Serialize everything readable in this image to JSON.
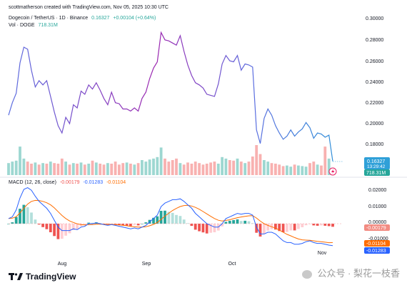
{
  "header": {
    "attribution": "scottmatherson created with TradingView.com, Nov 05, 2025 10:30 UTC",
    "symbol": "Dogecoin / TetherUS · 1D · Binance",
    "price": "0.16327",
    "change": "+0.00104 (+0.64%)",
    "vol_label": "Vol · DOGE",
    "vol_value": "718.31M"
  },
  "price_axis": {
    "ticks": [
      "0.30000",
      "0.28000",
      "0.26000",
      "0.24000",
      "0.22000",
      "0.20000",
      "0.18000"
    ],
    "current_price": "0.16327",
    "countdown": "13:29:42",
    "current_volume": "718.31M"
  },
  "macd": {
    "title": "MACD (12, 26, close)",
    "histogram_value": "-0.00179",
    "macd_value": "-0.01283",
    "signal_value": "-0.01104",
    "ticks": [
      "0.02000",
      "0.01000",
      "0.00000",
      "-0.01000"
    ],
    "current_hist": "-0.00179",
    "current_signal": "-0.01104",
    "current_macd": "-0.01283"
  },
  "time_axis": {
    "labels": [
      "Aug",
      "Sep",
      "Oct",
      "Nov"
    ]
  },
  "brand": {
    "logo_text": "TradingView"
  },
  "watermark": {
    "text": "公众号 · 梨花一枝香"
  },
  "colors": {
    "price_line_start": "#5b6ee0",
    "price_line_end": "#9c27b0",
    "price_line_recent": "#2f8fd8",
    "vol_up": "#26a69a",
    "vol_down": "#ef5350",
    "macd_line": "#2962ff",
    "signal_line": "#ff6d00",
    "hist_up_strong": "#26a69a",
    "hist_up_weak": "#b2dfdb",
    "hist_down_strong": "#ef5350",
    "hist_down_weak": "#ffcdd2",
    "current_price_bg": "#2fa0d8",
    "volume_tag_bg": "#26a69a"
  },
  "chart_data": [
    {
      "type": "line",
      "ylim": [
        0.16,
        0.3
      ],
      "series": [
        {
          "values": [
            0.207,
            0.219,
            0.228,
            0.257,
            0.272,
            0.27,
            0.25,
            0.234,
            0.24,
            0.236,
            0.24,
            0.225,
            0.21,
            0.197,
            0.19,
            0.205,
            0.199,
            0.217,
            0.214,
            0.23,
            0.227,
            0.236,
            0.232,
            0.238,
            0.231,
            0.223,
            0.217,
            0.229,
            0.219,
            0.218,
            0.213,
            0.213,
            0.211,
            0.214,
            0.211,
            0.223,
            0.229,
            0.242,
            0.252,
            0.258,
            0.286,
            0.279,
            0.278,
            0.276,
            0.274,
            0.283,
            0.268,
            0.255,
            0.245,
            0.238,
            0.236,
            0.233,
            0.227,
            0.226,
            0.225,
            0.237,
            0.256,
            0.264,
            0.259,
            0.258,
            0.264,
            0.25,
            0.256,
            0.255,
            0.253,
            0.193,
            0.18,
            0.204,
            0.213,
            0.207,
            0.197,
            0.19,
            0.184,
            0.187,
            0.193,
            0.187,
            0.191,
            0.194,
            0.2,
            0.195,
            0.185,
            0.19,
            0.189,
            0.186,
            0.188,
            0.163
          ]
        }
      ]
    },
    {
      "type": "bar",
      "values": [
        0.4,
        0.45,
        0.48,
        0.95,
        0.55,
        0.45,
        0.38,
        0.42,
        0.35,
        0.4,
        0.38,
        0.45,
        0.4,
        0.38,
        0.55,
        0.45,
        0.35,
        0.4,
        0.38,
        0.42,
        0.35,
        0.38,
        0.48,
        0.42,
        0.38,
        0.35,
        0.4,
        0.38,
        0.45,
        0.35,
        0.4,
        0.42,
        0.38,
        0.35,
        0.4,
        0.5,
        0.45,
        0.52,
        0.55,
        0.6,
        0.92,
        0.55,
        0.45,
        0.5,
        0.55,
        0.4,
        0.35,
        0.42,
        0.38,
        0.45,
        0.4,
        0.35,
        0.38,
        0.42,
        0.45,
        0.38,
        0.6,
        0.55,
        0.5,
        0.48,
        0.55,
        0.45,
        0.4,
        0.45,
        0.62,
        1.0,
        0.7,
        0.5,
        0.45,
        0.4,
        0.38,
        0.35,
        0.3,
        0.32,
        0.28,
        0.35,
        0.32,
        0.3,
        0.28,
        0.4,
        0.45,
        0.35,
        0.32,
        0.95,
        0.55,
        0.25
      ],
      "up": [
        1,
        1,
        1,
        1,
        1,
        0,
        0,
        1,
        0,
        1,
        0,
        1,
        0,
        0,
        0,
        1,
        0,
        1,
        0,
        1,
        0,
        1,
        0,
        1,
        0,
        0,
        1,
        0,
        0,
        0,
        0,
        1,
        0,
        1,
        0,
        1,
        1,
        1,
        1,
        1,
        1,
        0,
        0,
        0,
        0,
        1,
        0,
        0,
        0,
        0,
        0,
        0,
        0,
        0,
        0,
        1,
        1,
        1,
        0,
        0,
        1,
        0,
        1,
        0,
        0,
        0,
        0,
        1,
        1,
        0,
        0,
        0,
        0,
        1,
        1,
        0,
        1,
        1,
        1,
        0,
        0,
        1,
        0,
        0,
        1,
        1
      ]
    },
    {
      "type": "line",
      "ylim": [
        -0.016,
        0.022
      ],
      "series": [
        {
          "name": "MACD",
          "values": [
            0.003,
            0.004,
            0.008,
            0.015,
            0.02,
            0.021,
            0.0195,
            0.016,
            0.013,
            0.011,
            0.009,
            0.006,
            0.002,
            -0.002,
            -0.004,
            -0.004,
            -0.004,
            -0.003,
            -0.0035,
            -0.002,
            -0.0015,
            0.0,
            0.0,
            0.0005,
            0.0,
            -0.0005,
            -0.001,
            -0.0005,
            -0.001,
            -0.0015,
            -0.002,
            -0.0025,
            -0.003,
            -0.0025,
            -0.003,
            -0.002,
            -0.001,
            0.001,
            0.003,
            0.005,
            0.01,
            0.012,
            0.013,
            0.014,
            0.014,
            0.0145,
            0.013,
            0.011,
            0.009,
            0.006,
            0.004,
            0.002,
            0.0,
            -0.001,
            -0.002,
            -0.002,
            0.0,
            0.003,
            0.004,
            0.005,
            0.006,
            0.0055,
            0.006,
            0.006,
            0.005,
            -0.002,
            -0.006,
            -0.006,
            -0.005,
            -0.005,
            -0.006,
            -0.008,
            -0.01,
            -0.011,
            -0.011,
            -0.012,
            -0.012,
            -0.0115,
            -0.0105,
            -0.01,
            -0.011,
            -0.0115,
            -0.0115,
            -0.012,
            -0.0125,
            -0.0128
          ]
        },
        {
          "name": "Signal",
          "values": [
            0.003,
            0.0032,
            0.0041,
            0.0063,
            0.009,
            0.0114,
            0.013,
            0.0136,
            0.0135,
            0.013,
            0.0122,
            0.011,
            0.0092,
            0.007,
            0.0048,
            0.003,
            0.0016,
            0.0007,
            -0.0001,
            -0.0005,
            -0.0007,
            -0.0006,
            -0.0005,
            -0.0003,
            -0.0003,
            -0.0003,
            -0.0004,
            -0.0004,
            -0.0005,
            -0.0007,
            -0.0009,
            -0.0012,
            -0.0016,
            -0.0018,
            -0.002,
            -0.002,
            -0.0018,
            -0.0012,
            -0.0004,
            0.0007,
            0.0025,
            0.0044,
            0.0061,
            0.0077,
            0.0089,
            0.01,
            0.0106,
            0.0107,
            0.0103,
            0.0095,
            0.0084,
            0.0071,
            0.0057,
            0.0043,
            0.003,
            0.002,
            0.0016,
            0.0019,
            0.0023,
            0.0029,
            0.0035,
            0.0039,
            0.0043,
            0.0046,
            0.0047,
            0.0033,
            0.0015,
            0.0,
            -0.001,
            -0.0018,
            -0.0026,
            -0.0037,
            -0.005,
            -0.0062,
            -0.0071,
            -0.0081,
            -0.0089,
            -0.0094,
            -0.0096,
            -0.0097,
            -0.01,
            -0.0103,
            -0.0105,
            -0.0108,
            -0.0111,
            -0.011
          ]
        }
      ],
      "histogram": [
        0.0,
        0.0008,
        0.0039,
        0.0087,
        0.011,
        0.0096,
        0.0065,
        0.0024,
        -0.0005,
        -0.002,
        -0.0032,
        -0.005,
        -0.0072,
        -0.009,
        -0.0088,
        -0.007,
        -0.0056,
        -0.0037,
        -0.0034,
        -0.0015,
        -0.0008,
        0.0006,
        0.0005,
        0.0008,
        0.0003,
        -0.0002,
        -0.0006,
        -0.0001,
        -0.0005,
        -0.0008,
        -0.0011,
        -0.0013,
        -0.0014,
        -0.0007,
        -0.001,
        0.0,
        0.0008,
        0.0022,
        0.0034,
        0.0043,
        0.0075,
        0.0076,
        0.0069,
        0.0063,
        0.0051,
        0.0045,
        0.0024,
        0.0003,
        -0.0013,
        -0.0035,
        -0.0044,
        -0.0051,
        -0.0057,
        -0.0053,
        -0.005,
        -0.004,
        -0.0016,
        0.0011,
        0.0017,
        0.0021,
        0.0025,
        0.0016,
        0.0017,
        0.0014,
        0.0003,
        -0.0053,
        -0.0075,
        -0.006,
        -0.004,
        -0.0032,
        -0.0034,
        -0.0043,
        -0.005,
        -0.0048,
        -0.0039,
        -0.0039,
        -0.0031,
        -0.0021,
        -0.0009,
        -0.0003,
        -0.001,
        -0.0012,
        -0.001,
        -0.0012,
        -0.0014,
        -0.0018
      ]
    }
  ]
}
